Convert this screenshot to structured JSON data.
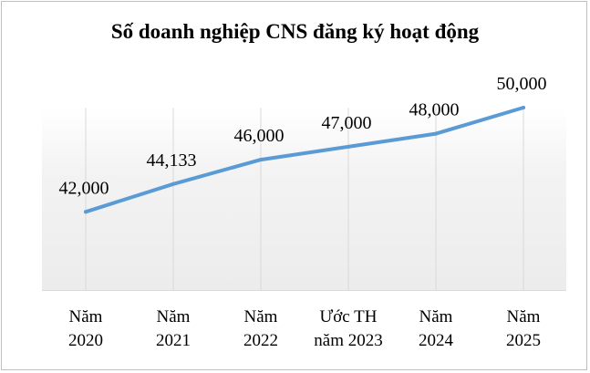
{
  "chart_data": {
    "type": "line",
    "title": "Số doanh nghiệp CNS đăng ký hoạt động",
    "categories": [
      [
        "Năm",
        "2020"
      ],
      [
        "Năm",
        "2021"
      ],
      [
        "Năm",
        "2022"
      ],
      [
        "Ước TH",
        "năm 2023"
      ],
      [
        "Năm",
        "2024"
      ],
      [
        "Năm",
        "2025"
      ]
    ],
    "values": [
      42000,
      44133,
      46000,
      47000,
      48000,
      50000
    ],
    "data_labels": [
      "42,000",
      "44,133",
      "46,000",
      "47,000",
      "48,000",
      "50,000"
    ],
    "line_color": "#5b9bd5",
    "ylim": [
      36000,
      50000
    ],
    "grid": "vertical",
    "legend": "none"
  }
}
